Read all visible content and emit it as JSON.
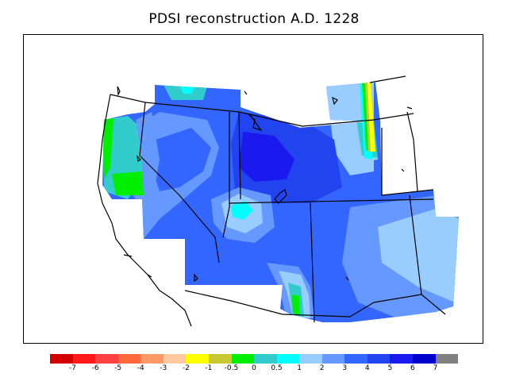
{
  "title": "PDSI reconstruction A.D. 1228",
  "legend": {
    "colors": [
      "#d40000",
      "#ff1a1a",
      "#ff4040",
      "#ff6a3a",
      "#ff9966",
      "#ffc8a0",
      "#ffff00",
      "#c8c832",
      "#00ee00",
      "#33cccc",
      "#00ffff",
      "#99ccff",
      "#6699ff",
      "#3366ff",
      "#2244ee",
      "#1a1aee",
      "#0000cc",
      "#808080"
    ],
    "tick_labels": [
      "-7",
      "-6",
      "-5",
      "-4",
      "-3",
      "-2",
      "-1",
      "-0.5",
      "0",
      "0.5",
      "1",
      "2",
      "3",
      "4",
      "5",
      "6",
      "7"
    ]
  },
  "map": {
    "region": "western United States",
    "field_colors": {
      "dark_blue": "#1a1aee",
      "blue": "#2244ee",
      "medium_blue": "#3366ff",
      "light_blue": "#6699ff",
      "pale_blue": "#99ccff",
      "cyan": "#00ffff",
      "teal": "#33cccc",
      "green": "#00ee00",
      "olive": "#c8c832",
      "yellow": "#ffff00"
    }
  }
}
